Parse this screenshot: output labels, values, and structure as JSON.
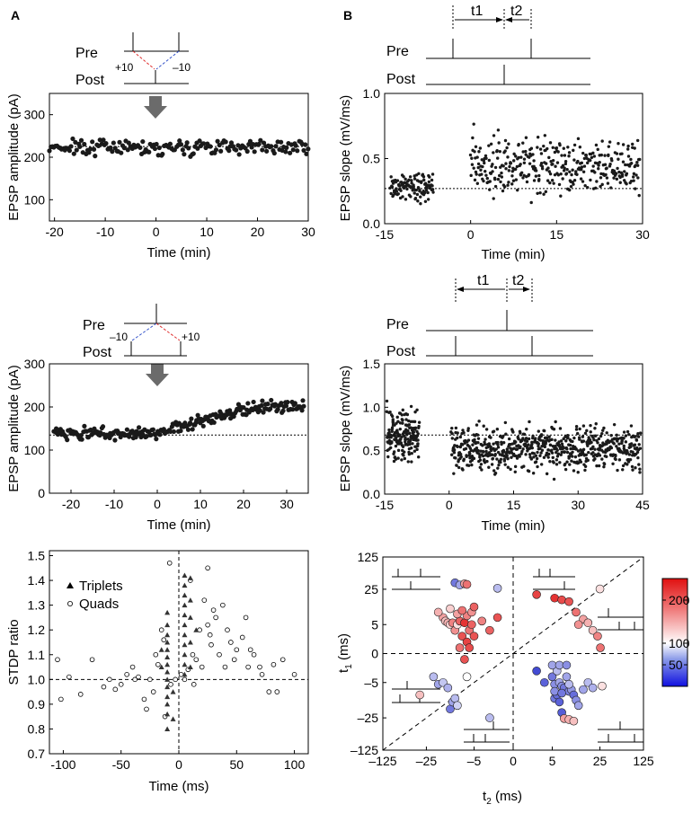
{
  "panel_labels": {
    "a": "A",
    "b": "B"
  },
  "colors": {
    "dot": "#1a1a1a",
    "arrow": "#6b6b6b",
    "dash": "#000000",
    "pre_post_red": "#e03030",
    "pre_post_blue": "#3050c8"
  },
  "protocol": {
    "pre": "Pre",
    "post": "Post",
    "plus10": "+10",
    "minus10": "–10",
    "t1": "t1",
    "t2": "t2"
  },
  "chart_data": [
    {
      "id": "a-top",
      "type": "scatter",
      "xlabel": "Time (min)",
      "ylabel": "EPSP amplitude (pA)",
      "xlim": [
        -21,
        30
      ],
      "ylim": [
        50,
        350
      ],
      "xticks": [
        -20,
        -10,
        0,
        10,
        20,
        30
      ],
      "yticks": [
        100,
        200,
        300
      ],
      "baseline": 225,
      "series": [
        {
          "name": "amplitude",
          "t_start": -21,
          "t_end": 30,
          "n": 170,
          "mean": 225,
          "spread": 18,
          "drift": 0
        }
      ]
    },
    {
      "id": "a-mid",
      "type": "scatter",
      "xlabel": "Time (min)",
      "ylabel": "EPSP amplitude (pA)",
      "xlim": [
        -25,
        35
      ],
      "ylim": [
        0,
        300
      ],
      "xticks": [
        -20,
        -10,
        0,
        10,
        20,
        30
      ],
      "yticks": [
        0,
        100,
        200,
        300
      ],
      "baseline": 135,
      "series": [
        {
          "name": "amplitude",
          "t_start": -24,
          "t_end": 34,
          "n": 230,
          "mean": 140,
          "spread": 14,
          "drift_after": 60
        }
      ]
    },
    {
      "id": "b-top",
      "type": "scatter",
      "xlabel": "Time (min)",
      "ylabel": "EPSP slope (mV/ms)",
      "xlim": [
        -15,
        30
      ],
      "ylim": [
        0,
        1.0
      ],
      "xticks": [
        -15,
        0,
        15,
        30
      ],
      "yticks": [
        0.0,
        0.5,
        1.0
      ],
      "ytick_labels": [
        "0.0",
        "0.5",
        "1.0"
      ],
      "baseline": 0.27,
      "series": [
        {
          "name": "before",
          "t_start": -14,
          "t_end": -6.5,
          "n": 120,
          "mean": 0.28,
          "spread": 0.1
        },
        {
          "name": "after",
          "t_start": 0,
          "t_end": 29.5,
          "n": 360,
          "mean": 0.45,
          "spread": 0.2
        }
      ]
    },
    {
      "id": "b-mid",
      "type": "scatter",
      "xlabel": "Time (min)",
      "ylabel": "EPSP slope (mV/ms)",
      "xlim": [
        -15,
        45
      ],
      "ylim": [
        0,
        1.5
      ],
      "xticks": [
        -15,
        0,
        15,
        30,
        45
      ],
      "yticks": [
        0.0,
        0.5,
        1.0,
        1.5
      ],
      "ytick_labels": [
        "0.0",
        "0.5",
        "1.0",
        "1.5"
      ],
      "baseline": 0.68,
      "series": [
        {
          "name": "before",
          "t_start": -14.5,
          "t_end": -7,
          "n": 180,
          "mean": 0.68,
          "spread": 0.28
        },
        {
          "name": "after",
          "t_start": 0.5,
          "t_end": 44.5,
          "n": 640,
          "mean": 0.52,
          "spread": 0.24
        }
      ]
    },
    {
      "id": "a-bottom",
      "type": "scatter",
      "xlabel": "Time (ms)",
      "ylabel": "STDP ratio",
      "xlim": [
        -112,
        112
      ],
      "ylim": [
        0.7,
        1.52
      ],
      "xticks": [
        -100,
        -50,
        0,
        50,
        100
      ],
      "yticks": [
        0.7,
        0.8,
        0.9,
        1.0,
        1.1,
        1.2,
        1.3,
        1.4,
        1.5
      ],
      "ytick_labels": [
        "0.7",
        "0.8",
        "0.9",
        "1.0",
        "1.1",
        "1.2",
        "1.3",
        "1.4",
        "1.5"
      ],
      "legend": [
        "Triplets",
        "Quads"
      ],
      "triplets": [
        [
          -10,
          0.8
        ],
        [
          -10,
          0.86
        ],
        [
          -10,
          0.9
        ],
        [
          -10,
          0.93
        ],
        [
          -10,
          0.97
        ],
        [
          -10,
          1.0
        ],
        [
          -10,
          1.03
        ],
        [
          -10,
          1.06
        ],
        [
          -10,
          1.09
        ],
        [
          -10,
          1.12
        ],
        [
          -10,
          1.15
        ],
        [
          -10,
          1.18
        ],
        [
          -10,
          1.22
        ],
        [
          -10,
          1.27
        ],
        [
          -15,
          1.05
        ],
        [
          -15,
          1.12
        ],
        [
          -5,
          0.84
        ],
        [
          -5,
          0.95
        ],
        [
          5,
          1.02
        ],
        [
          5,
          1.06
        ],
        [
          5,
          1.1
        ],
        [
          5,
          1.14
        ],
        [
          5,
          1.18
        ],
        [
          5,
          1.22
        ],
        [
          5,
          1.26
        ],
        [
          5,
          1.3
        ],
        [
          5,
          1.34
        ],
        [
          5,
          1.38
        ],
        [
          5,
          1.42
        ],
        [
          10,
          1.05
        ],
        [
          10,
          1.15
        ],
        [
          10,
          1.25
        ],
        [
          10,
          1.32
        ],
        [
          10,
          1.41
        ],
        [
          15,
          1.2
        ]
      ],
      "quads": [
        [
          -105,
          1.08
        ],
        [
          -102,
          0.92
        ],
        [
          -95,
          1.01
        ],
        [
          -85,
          0.94
        ],
        [
          -75,
          1.08
        ],
        [
          -65,
          0.97
        ],
        [
          -60,
          1.0
        ],
        [
          -55,
          0.96
        ],
        [
          -50,
          0.98
        ],
        [
          -45,
          1.02
        ],
        [
          -40,
          1.05
        ],
        [
          -38,
          1.0
        ],
        [
          -35,
          1.01
        ],
        [
          -30,
          0.92
        ],
        [
          -28,
          0.88
        ],
        [
          -25,
          1.0
        ],
        [
          -22,
          0.95
        ],
        [
          -20,
          1.1
        ],
        [
          -18,
          1.06
        ],
        [
          -15,
          1.2
        ],
        [
          -13,
          1.16
        ],
        [
          -12,
          0.85
        ],
        [
          -8,
          1.47
        ],
        [
          -7,
          0.98
        ],
        [
          -3,
          1.0
        ],
        [
          2,
          1.02
        ],
        [
          5,
          1.0
        ],
        [
          8,
          1.04
        ],
        [
          10,
          1.4
        ],
        [
          12,
          1.1
        ],
        [
          13,
          0.98
        ],
        [
          15,
          1.08
        ],
        [
          18,
          1.2
        ],
        [
          20,
          1.05
        ],
        [
          22,
          1.32
        ],
        [
          25,
          1.45
        ],
        [
          25,
          1.22
        ],
        [
          27,
          1.18
        ],
        [
          28,
          1.14
        ],
        [
          30,
          1.28
        ],
        [
          32,
          1.25
        ],
        [
          35,
          1.1
        ],
        [
          38,
          1.3
        ],
        [
          40,
          1.05
        ],
        [
          42,
          1.2
        ],
        [
          45,
          1.15
        ],
        [
          48,
          1.08
        ],
        [
          50,
          1.12
        ],
        [
          55,
          1.17
        ],
        [
          58,
          1.25
        ],
        [
          60,
          1.05
        ],
        [
          62,
          1.12
        ],
        [
          65,
          1.1
        ],
        [
          70,
          1.05
        ],
        [
          72,
          1.02
        ],
        [
          78,
          0.95
        ],
        [
          82,
          1.06
        ],
        [
          85,
          0.95
        ],
        [
          90,
          1.08
        ],
        [
          100,
          1.02
        ]
      ]
    },
    {
      "id": "b-bottom",
      "type": "scatter",
      "xlabel": "t2 (ms)",
      "ylabel": "t1 (ms)",
      "xticks": [
        -125,
        -25,
        -5,
        0,
        5,
        25,
        125
      ],
      "xtick_labels": [
        "–125",
        "–25",
        "–5",
        "0",
        "5",
        "25",
        "125"
      ],
      "yticks": [
        -125,
        -25,
        -5,
        0,
        5,
        25,
        125
      ],
      "ytick_labels": [
        "–125",
        "–25",
        "–5",
        "0",
        "5",
        "25",
        "125"
      ],
      "colorbar": {
        "min": 0,
        "max": 250,
        "ticks": [
          50,
          100,
          200
        ]
      },
      "points": [
        [
          -13,
          45,
          40
        ],
        [
          -11,
          38,
          60
        ],
        [
          -9,
          42,
          160
        ],
        [
          -8,
          40,
          190
        ],
        [
          -2,
          28,
          70
        ],
        [
          -18,
          9,
          160
        ],
        [
          -17,
          7,
          140
        ],
        [
          -16,
          6,
          150
        ],
        [
          -15,
          5,
          130
        ],
        [
          -14,
          6,
          180
        ],
        [
          -13,
          4,
          170
        ],
        [
          -12,
          5,
          120
        ],
        [
          -11,
          7,
          200
        ],
        [
          -10,
          3,
          210
        ],
        [
          -9,
          6,
          230
        ],
        [
          -8,
          2,
          220
        ],
        [
          -7,
          4,
          190
        ],
        [
          -6,
          5,
          200
        ],
        [
          -5,
          3,
          210
        ],
        [
          -4,
          7,
          180
        ],
        [
          -3,
          4,
          200
        ],
        [
          -2,
          9,
          210
        ],
        [
          -12,
          11,
          160
        ],
        [
          -8,
          10,
          180
        ],
        [
          -6,
          12,
          170
        ],
        [
          -20,
          12,
          150
        ],
        [
          -15,
          14,
          130
        ],
        [
          -10,
          13,
          190
        ],
        [
          -5,
          15,
          200
        ],
        [
          -11,
          1,
          190
        ],
        [
          -9,
          -1,
          210
        ],
        [
          -7,
          1,
          215
        ],
        [
          3,
          22,
          220
        ],
        [
          6,
          20,
          230
        ],
        [
          9,
          19,
          215
        ],
        [
          12,
          18,
          210
        ],
        [
          15,
          12,
          190
        ],
        [
          18,
          8,
          160
        ],
        [
          20,
          6,
          150
        ],
        [
          22,
          4,
          140
        ],
        [
          25,
          26,
          120
        ],
        [
          24,
          3,
          180
        ],
        [
          26,
          1,
          190
        ],
        [
          16,
          5,
          170
        ],
        [
          -40,
          -12,
          140
        ],
        [
          -22,
          -4,
          70
        ],
        [
          -20,
          -6,
          60
        ],
        [
          -18,
          -5,
          75
        ],
        [
          -16,
          -8,
          65
        ],
        [
          -15,
          -20,
          40
        ],
        [
          -14,
          -16,
          60
        ],
        [
          -13,
          -14,
          70
        ],
        [
          -12,
          -18,
          80
        ],
        [
          3,
          -3,
          20
        ],
        [
          4,
          -5,
          30
        ],
        [
          5,
          -4,
          40
        ],
        [
          6,
          -6,
          50
        ],
        [
          7,
          -3,
          70
        ],
        [
          8,
          -5,
          60
        ],
        [
          9,
          -7,
          50
        ],
        [
          10,
          -8,
          40
        ],
        [
          11,
          -4,
          60
        ],
        [
          12,
          -10,
          45
        ],
        [
          13,
          -9,
          55
        ],
        [
          14,
          -12,
          35
        ],
        [
          15,
          -15,
          50
        ],
        [
          16,
          -18,
          60
        ],
        [
          6,
          -14,
          40
        ],
        [
          7,
          -12,
          35
        ],
        [
          8,
          -16,
          30
        ],
        [
          9,
          -22,
          28
        ],
        [
          10,
          -27,
          160
        ],
        [
          12,
          -30,
          150
        ],
        [
          14,
          -35,
          140
        ],
        [
          18,
          -9,
          60
        ],
        [
          20,
          -5,
          70
        ],
        [
          22,
          -8,
          65
        ],
        [
          30,
          -7,
          120
        ],
        [
          5,
          -2,
          60
        ],
        [
          8,
          -2,
          60
        ],
        [
          11,
          -2,
          50
        ],
        [
          6,
          -10,
          50
        ],
        [
          9,
          -11,
          40
        ],
        [
          12,
          -6,
          70
        ],
        [
          -3,
          -25,
          70
        ],
        [
          -8,
          -4,
          100
        ]
      ]
    }
  ]
}
